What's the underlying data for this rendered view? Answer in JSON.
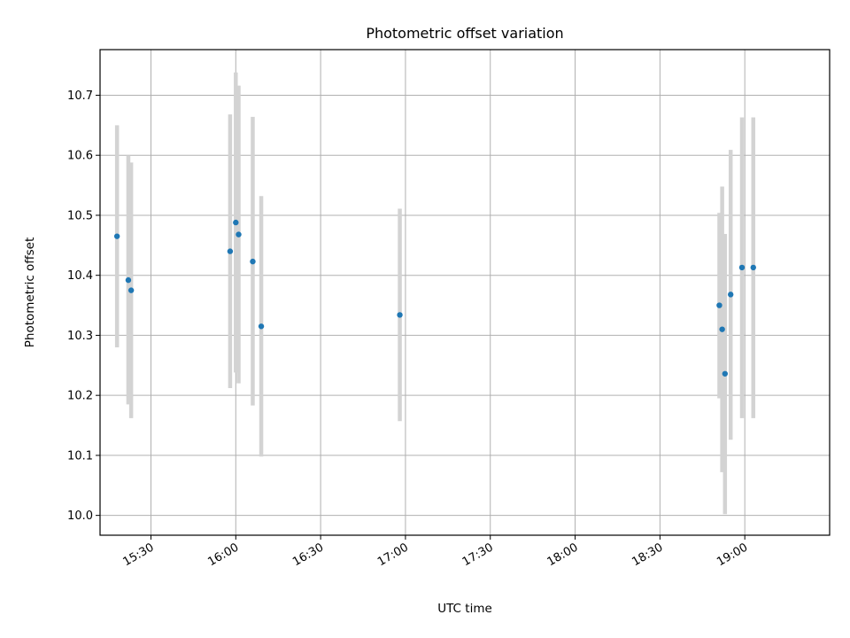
{
  "chart_data": {
    "type": "scatter",
    "title": "Photometric offset variation",
    "xlabel": "UTC time",
    "ylabel": "Photometric offset",
    "x_ticks": [
      "15:30",
      "16:00",
      "16:30",
      "17:00",
      "17:30",
      "18:00",
      "18:30",
      "19:00"
    ],
    "y_ticks": [
      "10.0",
      "10.1",
      "10.2",
      "10.3",
      "10.4",
      "10.5",
      "10.6",
      "10.7"
    ],
    "xlim": [
      "15:12",
      "19:30"
    ],
    "ylim": [
      9.967,
      10.776
    ],
    "grid": true,
    "colors": {
      "point": "#1f77b4",
      "errorbar": "#d3d3d3",
      "grid": "#b0b0b0"
    },
    "points": [
      {
        "x": "15:18",
        "y": 10.465,
        "err_low": 10.28,
        "err_high": 10.65
      },
      {
        "x": "15:22",
        "y": 10.392,
        "err_low": 10.185,
        "err_high": 10.6
      },
      {
        "x": "15:23",
        "y": 10.375,
        "err_low": 10.162,
        "err_high": 10.588
      },
      {
        "x": "15:58",
        "y": 10.44,
        "err_low": 10.212,
        "err_high": 10.668
      },
      {
        "x": "16:00",
        "y": 10.488,
        "err_low": 10.238,
        "err_high": 10.738
      },
      {
        "x": "16:01",
        "y": 10.468,
        "err_low": 10.22,
        "err_high": 10.716
      },
      {
        "x": "16:06",
        "y": 10.423,
        "err_low": 10.183,
        "err_high": 10.664
      },
      {
        "x": "16:09",
        "y": 10.315,
        "err_low": 10.098,
        "err_high": 10.532
      },
      {
        "x": "16:58",
        "y": 10.334,
        "err_low": 10.157,
        "err_high": 10.511
      },
      {
        "x": "18:51",
        "y": 10.35,
        "err_low": 10.195,
        "err_high": 10.504
      },
      {
        "x": "18:52",
        "y": 10.31,
        "err_low": 10.072,
        "err_high": 10.548
      },
      {
        "x": "18:53",
        "y": 10.236,
        "err_low": 10.002,
        "err_high": 10.469
      },
      {
        "x": "18:55",
        "y": 10.368,
        "err_low": 10.126,
        "err_high": 10.609
      },
      {
        "x": "18:59",
        "y": 10.413,
        "err_low": 10.162,
        "err_high": 10.663
      },
      {
        "x": "19:03",
        "y": 10.413,
        "err_low": 10.162,
        "err_high": 10.663
      }
    ]
  }
}
